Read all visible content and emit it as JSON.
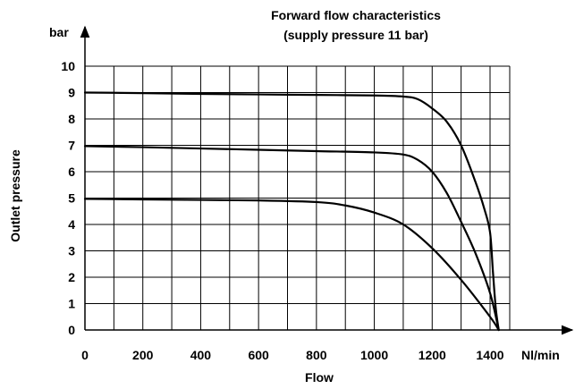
{
  "chart_data": {
    "type": "line",
    "title": [
      "Forward flow characteristics",
      "(supply pressure 11 bar)"
    ],
    "xlabel": "Flow",
    "ylabel": "Outlet pressure",
    "x_unit": "Nl/min",
    "y_unit": "bar",
    "xlim": [
      0,
      1600
    ],
    "ylim": [
      0,
      10
    ],
    "x_ticks": [
      "0",
      "200",
      "400",
      "600",
      "800",
      "1000",
      "1200",
      "1400"
    ],
    "y_ticks": [
      "0",
      "1",
      "2",
      "3",
      "4",
      "5",
      "6",
      "7",
      "8",
      "9",
      "10"
    ],
    "grid": true,
    "series": [
      {
        "x": [
          0,
          200,
          400,
          600,
          800,
          1000,
          1100,
          1150,
          1200,
          1250,
          1300,
          1350,
          1380,
          1400,
          1410,
          1420,
          1430
        ],
        "values": [
          9.0,
          8.98,
          8.95,
          8.93,
          8.91,
          8.89,
          8.85,
          8.75,
          8.4,
          7.9,
          7.0,
          5.6,
          4.6,
          3.7,
          2.2,
          0.8,
          0.0
        ]
      },
      {
        "x": [
          0,
          200,
          400,
          600,
          800,
          1000,
          1100,
          1150,
          1200,
          1250,
          1300,
          1350,
          1400,
          1430
        ],
        "values": [
          6.97,
          6.93,
          6.88,
          6.83,
          6.78,
          6.73,
          6.65,
          6.45,
          6.0,
          5.2,
          4.1,
          2.9,
          1.4,
          0.0
        ]
      },
      {
        "x": [
          0,
          200,
          400,
          600,
          800,
          900,
          1000,
          1100,
          1200,
          1300,
          1400,
          1430
        ],
        "values": [
          4.97,
          4.95,
          4.93,
          4.91,
          4.85,
          4.72,
          4.45,
          4.0,
          3.1,
          1.9,
          0.5,
          0.0
        ]
      }
    ]
  }
}
